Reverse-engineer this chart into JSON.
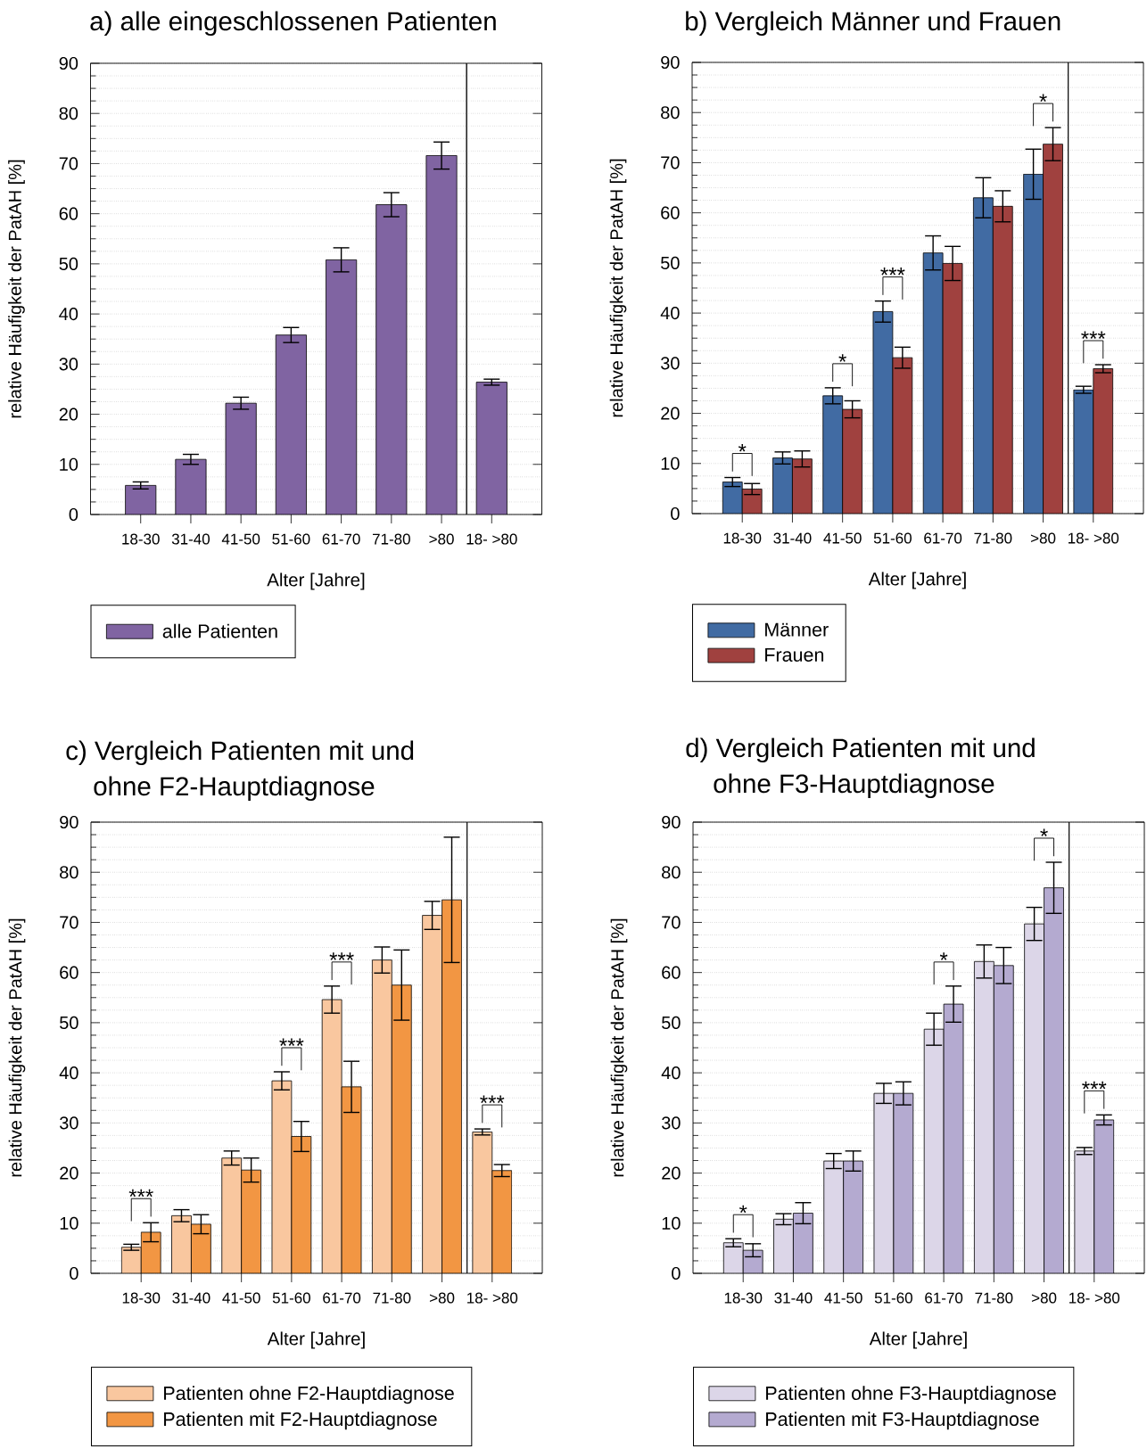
{
  "chart_data": [
    {
      "type": "bar",
      "title": "a) alle eingeschlossenen Patienten",
      "xlabel": "Alter [Jahre]",
      "ylabel": "relative Häufigkeit der PatAH [%]",
      "categories": [
        "18-30",
        "31-40",
        "41-50",
        "51-60",
        "61-70",
        "71-80",
        ">80"
      ],
      "series": [
        {
          "name": "alle Patienten",
          "color": "#8064a2",
          "values": [
            5.8,
            11.0,
            22.2,
            35.8,
            50.8,
            61.8,
            71.6
          ],
          "errors": [
            0.7,
            1.0,
            1.2,
            1.5,
            2.4,
            2.4,
            2.7
          ]
        }
      ],
      "ylim": [
        0,
        90
      ],
      "yticks": [
        0,
        {
          "value": 2.5,
          "label": null
        },
        {
          "value": 5,
          "label": null
        },
        {
          "value": 7.5,
          "label": null
        },
        10,
        {
          "value": 12.5,
          "label": null
        },
        {
          "value": 15,
          "label": null
        },
        {
          "value": 17.5,
          "label": null
        },
        20,
        {
          "value": 22.5,
          "label": null
        },
        {
          "value": 25,
          "label": null
        },
        {
          "value": 27.5,
          "label": null
        },
        30,
        {
          "value": 32.5,
          "label": null
        },
        {
          "value": 35,
          "label": null
        },
        {
          "value": 37.5,
          "label": null
        },
        40,
        {
          "value": 42.5,
          "label": null
        },
        {
          "value": 45,
          "label": null
        },
        {
          "value": 47.5,
          "label": null
        },
        50,
        {
          "value": 52.5,
          "label": null
        },
        {
          "value": 55,
          "label": null
        },
        {
          "value": 57.5,
          "label": null
        },
        60,
        {
          "value": 62.5,
          "label": null
        },
        {
          "value": 65,
          "label": null
        },
        {
          "value": 67.5,
          "label": null
        },
        70,
        {
          "value": 72.5,
          "label": null
        },
        {
          "value": 75,
          "label": null
        },
        {
          "value": 77.5,
          "label": null
        },
        80,
        {
          "value": 82.5,
          "label": null
        },
        {
          "value": 85,
          "label": null
        },
        {
          "value": 87.5,
          "label": null
        },
        90
      ],
      "grid": "y",
      "legend": "bottom"
    },
    {
      "type": "bar",
      "categories": [
        "18- >80"
      ],
      "series": [
        {
          "color": "#8064a2",
          "values": [
            26.4
          ],
          "errors": [
            0.6
          ]
        }
      ],
      "ylim": [
        0,
        90
      ],
      "yticks": [
        0,
        {
          "value": 2.5,
          "label": null
        },
        {
          "value": 5,
          "label": null
        },
        {
          "value": 7.5,
          "label": null
        },
        10,
        {
          "value": 12.5,
          "label": null
        },
        {
          "value": 15,
          "label": null
        },
        {
          "value": 17.5,
          "label": null
        },
        20,
        {
          "value": 22.5,
          "label": null
        },
        {
          "value": 25,
          "label": null
        },
        {
          "value": 27.5,
          "label": null
        },
        30,
        {
          "value": 32.5,
          "label": null
        },
        {
          "value": 35,
          "label": null
        },
        {
          "value": 37.5,
          "label": null
        },
        40,
        {
          "value": 42.5,
          "label": null
        },
        {
          "value": 45,
          "label": null
        },
        {
          "value": 47.5,
          "label": null
        },
        50,
        {
          "value": 52.5,
          "label": null
        },
        {
          "value": 55,
          "label": null
        },
        {
          "value": 57.5,
          "label": null
        },
        60,
        {
          "value": 62.5,
          "label": null
        },
        {
          "value": 65,
          "label": null
        },
        {
          "value": 67.5,
          "label": null
        },
        70,
        {
          "value": 72.5,
          "label": null
        },
        {
          "value": 75,
          "label": null
        },
        {
          "value": 77.5,
          "label": null
        },
        80,
        {
          "value": 82.5,
          "label": null
        },
        {
          "value": 85,
          "label": null
        },
        {
          "value": 87.5,
          "label": null
        },
        90
      ],
      "grid": "y",
      "tick_labels": "x"
    },
    {
      "type": "bar",
      "title": "b) Vergleich Männer und Frauen",
      "xlabel": "Alter [Jahre]",
      "ylabel": "relative Häufigkeit der PatAH [%]",
      "categories": [
        "18-30",
        "31-40",
        "41-50",
        "51-60",
        "61-70",
        "71-80",
        ">80"
      ],
      "series": [
        {
          "name": "Männer",
          "color": "#416ba3",
          "values": [
            6.3,
            11.1,
            23.5,
            40.3,
            52.0,
            63.0,
            67.7
          ],
          "errors": [
            0.9,
            1.2,
            1.6,
            2.1,
            3.4,
            4.0,
            5.0
          ]
        },
        {
          "name": "Frauen",
          "color": "#a0413f",
          "values": [
            4.9,
            10.9,
            20.8,
            31.1,
            49.9,
            61.3,
            73.7
          ],
          "errors": [
            1.1,
            1.6,
            1.7,
            2.1,
            3.4,
            3.1,
            3.3
          ]
        }
      ],
      "ylim": [
        0,
        90
      ],
      "yticks": [
        0,
        {
          "value": 2.5,
          "label": null
        },
        {
          "value": 5,
          "label": null
        },
        {
          "value": 7.5,
          "label": null
        },
        10,
        {
          "value": 12.5,
          "label": null
        },
        {
          "value": 15,
          "label": null
        },
        {
          "value": 17.5,
          "label": null
        },
        20,
        {
          "value": 22.5,
          "label": null
        },
        {
          "value": 25,
          "label": null
        },
        {
          "value": 27.5,
          "label": null
        },
        30,
        {
          "value": 32.5,
          "label": null
        },
        {
          "value": 35,
          "label": null
        },
        {
          "value": 37.5,
          "label": null
        },
        40,
        {
          "value": 42.5,
          "label": null
        },
        {
          "value": 45,
          "label": null
        },
        {
          "value": 47.5,
          "label": null
        },
        50,
        {
          "value": 52.5,
          "label": null
        },
        {
          "value": 55,
          "label": null
        },
        {
          "value": 57.5,
          "label": null
        },
        60,
        {
          "value": 62.5,
          "label": null
        },
        {
          "value": 65,
          "label": null
        },
        {
          "value": 67.5,
          "label": null
        },
        70,
        {
          "value": 72.5,
          "label": null
        },
        {
          "value": 75,
          "label": null
        },
        {
          "value": 77.5,
          "label": null
        },
        80,
        {
          "value": 82.5,
          "label": null
        },
        {
          "value": 85,
          "label": null
        },
        {
          "value": 87.5,
          "label": null
        },
        90
      ],
      "grid": "y",
      "legend": "bottom",
      "annotations": [
        "*",
        "*",
        "***",
        "*"
      ]
    },
    {
      "type": "bar",
      "categories": [
        "18- >80"
      ],
      "series": [
        {
          "color": "#416ba3",
          "values": [
            24.7
          ],
          "errors": [
            0.7
          ]
        },
        {
          "color": "#a0413f",
          "values": [
            28.9
          ],
          "errors": [
            0.8
          ]
        }
      ],
      "ylim": [
        0,
        90
      ],
      "yticks": [
        0,
        {
          "value": 2.5,
          "label": null
        },
        {
          "value": 5,
          "label": null
        },
        {
          "value": 7.5,
          "label": null
        },
        10,
        {
          "value": 12.5,
          "label": null
        },
        {
          "value": 15,
          "label": null
        },
        {
          "value": 17.5,
          "label": null
        },
        20,
        {
          "value": 22.5,
          "label": null
        },
        {
          "value": 25,
          "label": null
        },
        {
          "value": 27.5,
          "label": null
        },
        30,
        {
          "value": 32.5,
          "label": null
        },
        {
          "value": 35,
          "label": null
        },
        {
          "value": 37.5,
          "label": null
        },
        40,
        {
          "value": 42.5,
          "label": null
        },
        {
          "value": 45,
          "label": null
        },
        {
          "value": 47.5,
          "label": null
        },
        50,
        {
          "value": 52.5,
          "label": null
        },
        {
          "value": 55,
          "label": null
        },
        {
          "value": 57.5,
          "label": null
        },
        60,
        {
          "value": 62.5,
          "label": null
        },
        {
          "value": 65,
          "label": null
        },
        {
          "value": 67.5,
          "label": null
        },
        70,
        {
          "value": 72.5,
          "label": null
        },
        {
          "value": 75,
          "label": null
        },
        {
          "value": 77.5,
          "label": null
        },
        80,
        {
          "value": 82.5,
          "label": null
        },
        {
          "value": 85,
          "label": null
        },
        {
          "value": 87.5,
          "label": null
        },
        90
      ],
      "grid": "y",
      "tick_labels": "x",
      "annotations": [
        "***"
      ]
    },
    {
      "type": "bar",
      "title": "c) Vergleich Patienten mit und ohne F2-Hauptdiagnose",
      "xlabel": "Alter [Jahre]",
      "ylabel": "relative Häufigkeit der PatAH [%]",
      "categories": [
        "18-30",
        "31-40",
        "41-50",
        "51-60",
        "61-70",
        "71-80",
        ">80"
      ],
      "series": [
        {
          "name": "Patienten ohne F2-Hauptdiagnose",
          "color": "#f9c79f",
          "values": [
            5.2,
            11.5,
            23.0,
            38.4,
            54.6,
            62.5,
            71.4
          ],
          "errors": [
            0.6,
            1.2,
            1.4,
            1.8,
            2.7,
            2.6,
            2.8
          ]
        },
        {
          "name": "Patienten mit F2-Hauptdiagnose",
          "color": "#f29643",
          "values": [
            8.2,
            9.8,
            20.6,
            27.3,
            37.2,
            57.5,
            74.5
          ],
          "errors": [
            1.9,
            1.9,
            2.4,
            3.0,
            5.1,
            7.0,
            12.5
          ]
        }
      ],
      "ylim": [
        0,
        90
      ],
      "yticks": [
        0,
        {
          "value": 2.5,
          "label": null
        },
        {
          "value": 5,
          "label": null
        },
        {
          "value": 7.5,
          "label": null
        },
        10,
        {
          "value": 12.5,
          "label": null
        },
        {
          "value": 15,
          "label": null
        },
        {
          "value": 17.5,
          "label": null
        },
        20,
        {
          "value": 22.5,
          "label": null
        },
        {
          "value": 25,
          "label": null
        },
        {
          "value": 27.5,
          "label": null
        },
        30,
        {
          "value": 32.5,
          "label": null
        },
        {
          "value": 35,
          "label": null
        },
        {
          "value": 37.5,
          "label": null
        },
        40,
        {
          "value": 42.5,
          "label": null
        },
        {
          "value": 45,
          "label": null
        },
        {
          "value": 47.5,
          "label": null
        },
        50,
        {
          "value": 52.5,
          "label": null
        },
        {
          "value": 55,
          "label": null
        },
        {
          "value": 57.5,
          "label": null
        },
        60,
        {
          "value": 62.5,
          "label": null
        },
        {
          "value": 65,
          "label": null
        },
        {
          "value": 67.5,
          "label": null
        },
        70,
        {
          "value": 72.5,
          "label": null
        },
        {
          "value": 75,
          "label": null
        },
        {
          "value": 77.5,
          "label": null
        },
        80,
        {
          "value": 82.5,
          "label": null
        },
        {
          "value": 85,
          "label": null
        },
        {
          "value": 87.5,
          "label": null
        },
        90
      ],
      "grid": "y",
      "legend": "bottom",
      "annotations": [
        "***",
        "***",
        "***"
      ]
    },
    {
      "type": "bar",
      "categories": [
        "18- >80"
      ],
      "series": [
        {
          "color": "#f9c79f",
          "values": [
            28.2
          ],
          "errors": [
            0.6
          ]
        },
        {
          "color": "#f29643",
          "values": [
            20.5
          ],
          "errors": [
            1.2
          ]
        }
      ],
      "ylim": [
        0,
        90
      ],
      "yticks": [
        0,
        {
          "value": 2.5,
          "label": null
        },
        {
          "value": 5,
          "label": null
        },
        {
          "value": 7.5,
          "label": null
        },
        10,
        {
          "value": 12.5,
          "label": null
        },
        {
          "value": 15,
          "label": null
        },
        {
          "value": 17.5,
          "label": null
        },
        20,
        {
          "value": 22.5,
          "label": null
        },
        {
          "value": 25,
          "label": null
        },
        {
          "value": 27.5,
          "label": null
        },
        30,
        {
          "value": 32.5,
          "label": null
        },
        {
          "value": 35,
          "label": null
        },
        {
          "value": 37.5,
          "label": null
        },
        40,
        {
          "value": 42.5,
          "label": null
        },
        {
          "value": 45,
          "label": null
        },
        {
          "value": 47.5,
          "label": null
        },
        50,
        {
          "value": 52.5,
          "label": null
        },
        {
          "value": 55,
          "label": null
        },
        {
          "value": 57.5,
          "label": null
        },
        60,
        {
          "value": 62.5,
          "label": null
        },
        {
          "value": 65,
          "label": null
        },
        {
          "value": 67.5,
          "label": null
        },
        70,
        {
          "value": 72.5,
          "label": null
        },
        {
          "value": 75,
          "label": null
        },
        {
          "value": 77.5,
          "label": null
        },
        80,
        {
          "value": 82.5,
          "label": null
        },
        {
          "value": 85,
          "label": null
        },
        {
          "value": 87.5,
          "label": null
        },
        90
      ],
      "grid": "y",
      "tick_labels": "x",
      "annotations": [
        "***"
      ]
    },
    {
      "type": "bar",
      "title": "d) Vergleich Patienten mit und ohne F3-Hauptdiagnose",
      "xlabel": "Alter [Jahre]",
      "ylabel": "relative Häufigkeit der PatAH [%]",
      "categories": [
        "18-30",
        "31-40",
        "41-50",
        "51-60",
        "61-70",
        "71-80",
        ">80"
      ],
      "series": [
        {
          "name": "Patienten ohne F3-Hauptdiagnose",
          "color": "#dcd6e8",
          "values": [
            6.1,
            10.8,
            22.4,
            35.9,
            48.7,
            62.2,
            69.7
          ],
          "errors": [
            0.8,
            1.1,
            1.5,
            2.0,
            3.2,
            3.3,
            3.3
          ]
        },
        {
          "name": "Patienten mit F3-Hauptdiagnose",
          "color": "#b4aad0",
          "values": [
            4.6,
            12.0,
            22.4,
            35.9,
            53.7,
            61.4,
            76.9
          ],
          "errors": [
            1.3,
            2.1,
            2.0,
            2.3,
            3.6,
            3.6,
            5.1
          ]
        }
      ],
      "ylim": [
        0,
        90
      ],
      "yticks": [
        0,
        {
          "value": 2.5,
          "label": null
        },
        {
          "value": 5,
          "label": null
        },
        {
          "value": 7.5,
          "label": null
        },
        10,
        {
          "value": 12.5,
          "label": null
        },
        {
          "value": 15,
          "label": null
        },
        {
          "value": 17.5,
          "label": null
        },
        20,
        {
          "value": 22.5,
          "label": null
        },
        {
          "value": 25,
          "label": null
        },
        {
          "value": 27.5,
          "label": null
        },
        30,
        {
          "value": 32.5,
          "label": null
        },
        {
          "value": 35,
          "label": null
        },
        {
          "value": 37.5,
          "label": null
        },
        40,
        {
          "value": 42.5,
          "label": null
        },
        {
          "value": 45,
          "label": null
        },
        {
          "value": 47.5,
          "label": null
        },
        50,
        {
          "value": 52.5,
          "label": null
        },
        {
          "value": 55,
          "label": null
        },
        {
          "value": 57.5,
          "label": null
        },
        60,
        {
          "value": 62.5,
          "label": null
        },
        {
          "value": 65,
          "label": null
        },
        {
          "value": 67.5,
          "label": null
        },
        70,
        {
          "value": 72.5,
          "label": null
        },
        {
          "value": 75,
          "label": null
        },
        {
          "value": 77.5,
          "label": null
        },
        80,
        {
          "value": 82.5,
          "label": null
        },
        {
          "value": 85,
          "label": null
        },
        {
          "value": 87.5,
          "label": null
        },
        90
      ],
      "grid": "y",
      "legend": "bottom",
      "annotations": [
        "*",
        "*",
        "*"
      ]
    },
    {
      "type": "bar",
      "categories": [
        "18- >80"
      ],
      "series": [
        {
          "color": "#dcd6e8",
          "values": [
            24.4
          ],
          "errors": [
            0.7
          ]
        },
        {
          "color": "#b4aad0",
          "values": [
            30.6
          ],
          "errors": [
            1.0
          ]
        }
      ],
      "ylim": [
        0,
        90
      ],
      "yticks": [
        0,
        {
          "value": 2.5,
          "label": null
        },
        {
          "value": 5,
          "label": null
        },
        {
          "value": 7.5,
          "label": null
        },
        10,
        {
          "value": 12.5,
          "label": null
        },
        {
          "value": 15,
          "label": null
        },
        {
          "value": 17.5,
          "label": null
        },
        20,
        {
          "value": 22.5,
          "label": null
        },
        {
          "value": 25,
          "label": null
        },
        {
          "value": 27.5,
          "label": null
        },
        30,
        {
          "value": 32.5,
          "label": null
        },
        {
          "value": 35,
          "label": null
        },
        {
          "value": 37.5,
          "label": null
        },
        40,
        {
          "value": 42.5,
          "label": null
        },
        {
          "value": 45,
          "label": null
        },
        {
          "value": 47.5,
          "label": null
        },
        50,
        {
          "value": 52.5,
          "label": null
        },
        {
          "value": 55,
          "label": null
        },
        {
          "value": 57.5,
          "label": null
        },
        60,
        {
          "value": 62.5,
          "label": null
        },
        {
          "value": 65,
          "label": null
        },
        {
          "value": 67.5,
          "label": null
        },
        70,
        {
          "value": 72.5,
          "label": null
        },
        {
          "value": 75,
          "label": null
        },
        {
          "value": 77.5,
          "label": null
        },
        80,
        {
          "value": 82.5,
          "label": null
        },
        {
          "value": 85,
          "label": null
        },
        {
          "value": 87.5,
          "label": null
        },
        90
      ],
      "grid": "y",
      "tick_labels": "x",
      "annotations": [
        "***"
      ]
    }
  ]
}
